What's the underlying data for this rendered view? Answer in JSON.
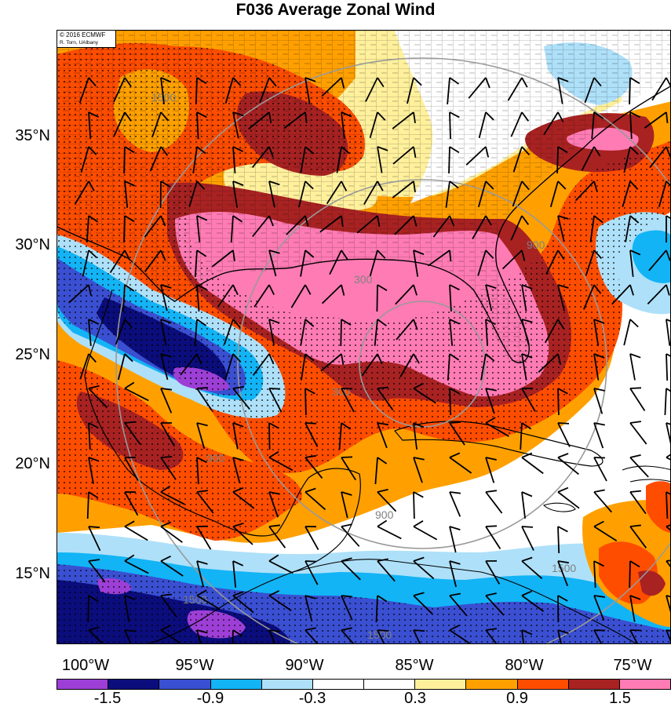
{
  "title": "F036 Average Zonal Wind",
  "credit": {
    "line1": "© 2016 ECMWF",
    "line2": "R. Torn, UAlbany"
  },
  "lat_labels": [
    "35°N",
    "30°N",
    "25°N",
    "20°N",
    "15°N"
  ],
  "lon_labels": [
    "100°W",
    "95°W",
    "90°W",
    "85°W",
    "80°W",
    "75°W"
  ],
  "colorbar": {
    "colors": [
      "#9d3fd6",
      "#0b0d7c",
      "#3a4fd1",
      "#12b4f5",
      "#aee0f9",
      "#ffffff",
      "#ffffff",
      "#fff09c",
      "#ffa000",
      "#ff4d00",
      "#a82222",
      "#ff7bb4"
    ],
    "labels": [
      "-1.5",
      "-0.9",
      "-0.3",
      "0.3",
      "0.9",
      "1.5"
    ]
  },
  "range_ring_labels": [
    "300",
    "900",
    "1500"
  ],
  "palette": {
    "ocean": "#ffffff",
    "pink": "#ff7bb4",
    "maroon": "#a82222",
    "red_orange": "#ff4d00",
    "orange": "#ffa000",
    "yellow": "#fff09c",
    "light_blue": "#aee0f9",
    "cyan": "#12b4f5",
    "blue": "#3a4fd1",
    "navy": "#0b0d7c",
    "purple": "#9d3fd6",
    "ring_gray": "#999999"
  }
}
